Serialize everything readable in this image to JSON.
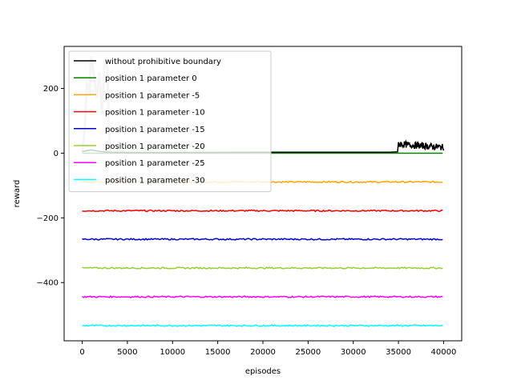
{
  "chart_data": {
    "type": "line",
    "title": "",
    "xlabel": "episodes",
    "ylabel": "reward",
    "xlim": [
      -2000,
      42000
    ],
    "ylim": [
      -580,
      330
    ],
    "x_ticks": [
      0,
      5000,
      10000,
      15000,
      20000,
      25000,
      30000,
      35000,
      40000
    ],
    "x_tick_labels": [
      "0",
      "5000",
      "10000",
      "15000",
      "20000",
      "25000",
      "30000",
      "35000",
      "40000"
    ],
    "y_ticks": [
      -400,
      -200,
      0,
      200
    ],
    "y_tick_labels": [
      "−400",
      "−200",
      "0",
      "200"
    ],
    "grid": false,
    "legend_position": "top-left",
    "series": [
      {
        "name": "without prohibitive boundary",
        "color": "#000000",
        "level": 5,
        "x": [
          0,
          1000,
          2000,
          3000,
          5000,
          10000,
          20000,
          30000,
          34000,
          34900,
          35000,
          35300,
          35600,
          36000,
          37000,
          38000,
          39000,
          40000
        ],
        "values": [
          5,
          10,
          5,
          3,
          2,
          2,
          3,
          3,
          3,
          4,
          45,
          20,
          35,
          25,
          20,
          28,
          18,
          15
        ]
      },
      {
        "name": "position 1 parameter 0",
        "color": "#008000",
        "level": 0,
        "x": [
          0,
          40000
        ],
        "values": [
          0,
          0
        ]
      },
      {
        "name": "position 1 parameter -5",
        "color": "#ffa500",
        "level": -89,
        "x": [
          0,
          40000
        ],
        "values": [
          -89,
          -89
        ]
      },
      {
        "name": "position 1 parameter -10",
        "color": "#ff0000",
        "level": -178,
        "x": [
          0,
          40000
        ],
        "values": [
          -178,
          -178
        ]
      },
      {
        "name": "position 1 parameter -15",
        "color": "#0000cd",
        "level": -266,
        "x": [
          0,
          40000
        ],
        "values": [
          -266,
          -266
        ]
      },
      {
        "name": "position 1 parameter -20",
        "color": "#9acd32",
        "level": -355,
        "x": [
          0,
          40000
        ],
        "values": [
          -355,
          -355
        ]
      },
      {
        "name": "position 1 parameter -25",
        "color": "#ff00ff",
        "level": -444,
        "x": [
          0,
          40000
        ],
        "values": [
          -444,
          -444
        ]
      },
      {
        "name": "position 1 parameter -30",
        "color": "#00ffff",
        "level": -533,
        "x": [
          0,
          40000
        ],
        "values": [
          -533,
          -533
        ]
      }
    ],
    "background_band": {
      "color": "#cccccc",
      "x": [
        0,
        300,
        500,
        800,
        1000,
        1300,
        1600,
        1900,
        2200,
        2500,
        2800,
        3000,
        3200
      ],
      "values": [
        0,
        80,
        220,
        180,
        300,
        240,
        170,
        250,
        120,
        290,
        260,
        40,
        0
      ]
    }
  }
}
